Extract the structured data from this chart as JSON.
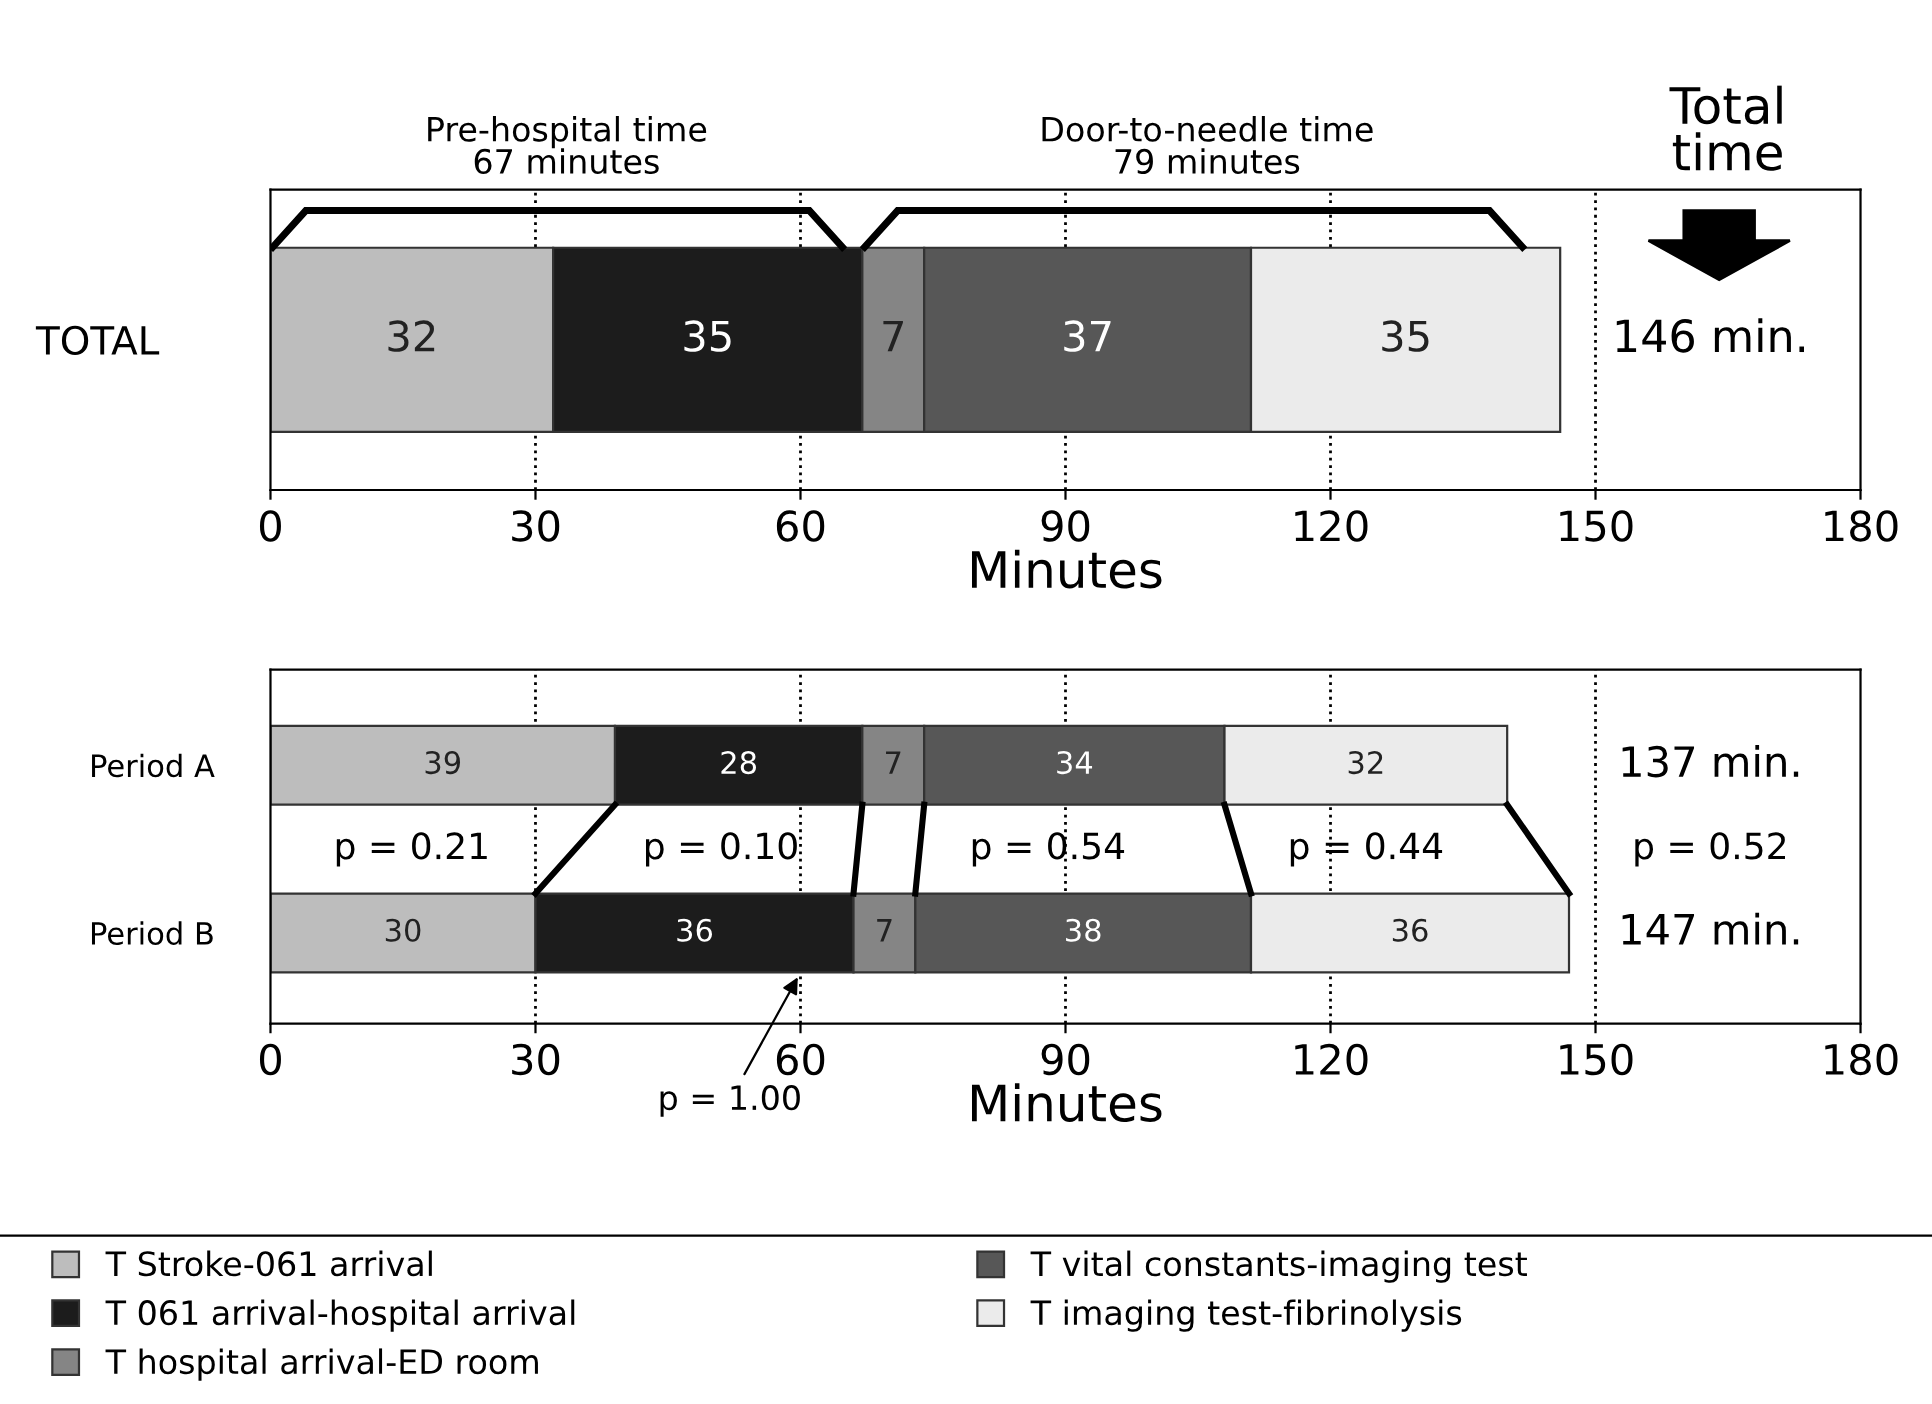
{
  "chart_data": [
    {
      "type": "bar",
      "orientation": "horizontal",
      "stacked": true,
      "categories": [
        "TOTAL"
      ],
      "series": [
        {
          "color": "#bdbdbd",
          "values": [
            32
          ]
        },
        {
          "color": "#1c1c1c",
          "values": [
            35
          ]
        },
        {
          "color": "#858585",
          "values": [
            7
          ]
        },
        {
          "color": "#575757",
          "values": [
            37
          ]
        },
        {
          "color": "#ebebeb",
          "values": [
            35
          ]
        }
      ],
      "data_labels": true,
      "totals": [
        "146 min."
      ],
      "xlim": [
        0,
        180
      ],
      "xticks": [
        0,
        30,
        60,
        90,
        120,
        150,
        180
      ],
      "xlabel": "Minutes",
      "ref_lines": [
        {
          "axis": "x",
          "value": 30,
          "line_style": "dotted"
        },
        {
          "axis": "x",
          "value": 60,
          "line_style": "dotted"
        },
        {
          "axis": "x",
          "value": 90,
          "line_style": "dotted"
        },
        {
          "axis": "x",
          "value": 120,
          "line_style": "dotted"
        },
        {
          "axis": "x",
          "value": 150,
          "line_style": "dotted"
        }
      ],
      "annotations": [
        "Pre-hospital time\n67 minutes",
        "Door-to-needle time\n79 minutes",
        "Total\ntime"
      ]
    },
    {
      "type": "bar",
      "orientation": "horizontal",
      "stacked": true,
      "categories": [
        "Period A",
        "Period B"
      ],
      "series": [
        {
          "name": "T Stroke-061 arrival",
          "color": "#bdbdbd",
          "values": [
            39,
            30
          ]
        },
        {
          "name": "T 061 arrival-hospital arrival",
          "color": "#1c1c1c",
          "values": [
            28,
            36
          ]
        },
        {
          "name": "T hospital arrival-ED room",
          "color": "#858585",
          "values": [
            7,
            7
          ]
        },
        {
          "name": "T vital constants-imaging test",
          "color": "#575757",
          "values": [
            34,
            38
          ]
        },
        {
          "name": "T imaging test-fibrinolysis",
          "color": "#ebebeb",
          "values": [
            32,
            36
          ]
        }
      ],
      "data_labels": true,
      "totals": [
        "137 min.",
        "147 min."
      ],
      "legend": "bottom",
      "xlim": [
        0,
        180
      ],
      "xticks": [
        0,
        30,
        60,
        90,
        120,
        150,
        180
      ],
      "xlabel": "Minutes",
      "ref_lines": [
        {
          "axis": "x",
          "value": 30,
          "line_style": "dotted"
        },
        {
          "axis": "x",
          "value": 60,
          "line_style": "dotted"
        },
        {
          "axis": "x",
          "value": 90,
          "line_style": "dotted"
        },
        {
          "axis": "x",
          "value": 120,
          "line_style": "dotted"
        },
        {
          "axis": "x",
          "value": 150,
          "line_style": "dotted"
        }
      ],
      "annotations": [
        "p = 0.21",
        "p = 0.10",
        "p = 0.54",
        "p = 0.44",
        "p = 0.52",
        {
          "text": "p = 1.00",
          "x": 60,
          "y": "Period B"
        }
      ]
    }
  ]
}
